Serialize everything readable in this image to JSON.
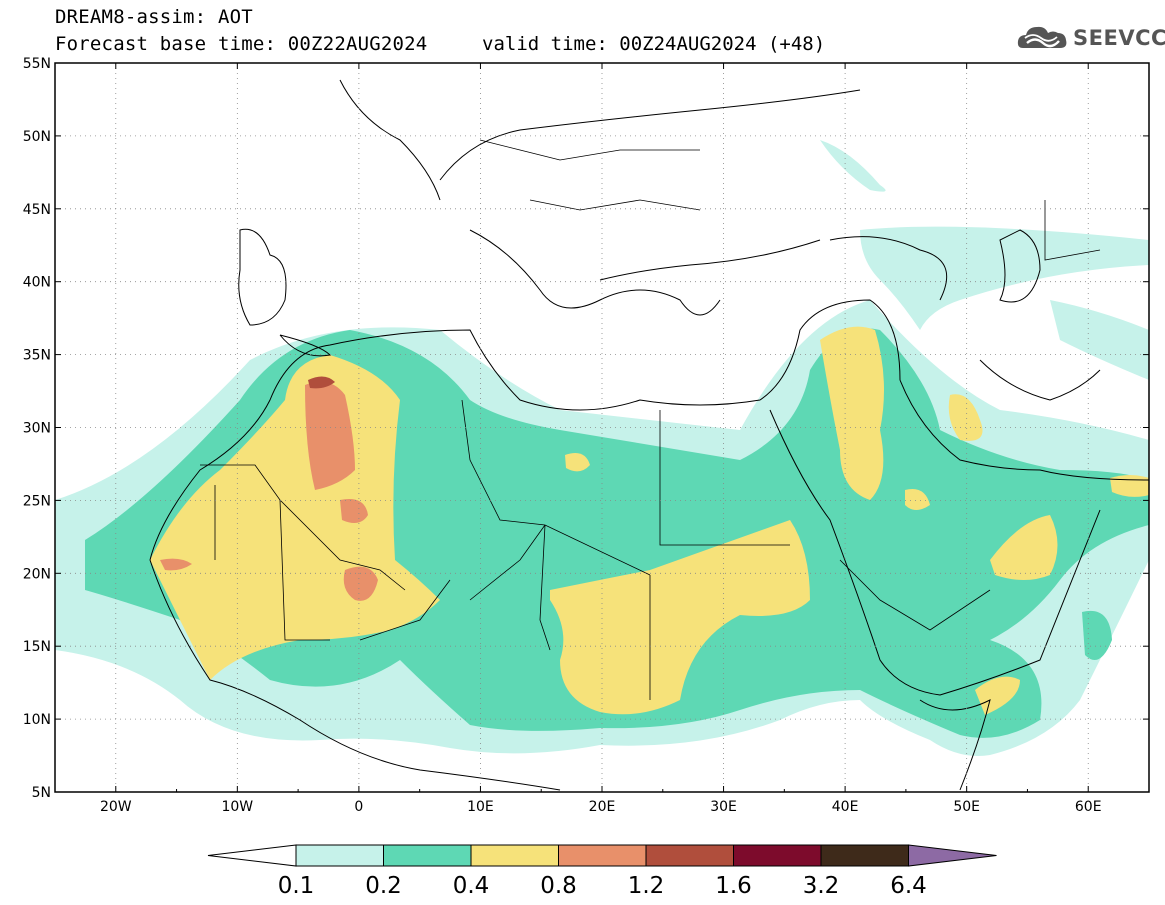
{
  "header": {
    "title": "DREAM8-assim: AOT",
    "forecast_base": "Forecast base time: 00Z22AUG2024",
    "valid_time": "valid time: 00Z24AUG2024 (+48)"
  },
  "logo": {
    "text": "SEEVCCC",
    "icon": "cloud-icon"
  },
  "map": {
    "lat_labels": [
      "55N",
      "50N",
      "45N",
      "40N",
      "35N",
      "30N",
      "25N",
      "20N",
      "15N",
      "10N",
      "5N"
    ],
    "lon_labels": [
      "20W",
      "10W",
      "0",
      "10E",
      "20E",
      "30E",
      "40E",
      "50E",
      "60E"
    ],
    "lon_range": [
      -25,
      65
    ],
    "lat_range": [
      5,
      55
    ],
    "grid": "dotted"
  },
  "colorbar": {
    "labels": [
      "0.1",
      "0.2",
      "0.4",
      "0.8",
      "1.2",
      "1.6",
      "3.2",
      "6.4"
    ],
    "colors": [
      "#ffffff",
      "#c6f2ea",
      "#5ed8b4",
      "#f6e27a",
      "#e8906a",
      "#b04e3c",
      "#7d0b2c",
      "#3e2a1a",
      "#8d6aa4"
    ]
  }
}
